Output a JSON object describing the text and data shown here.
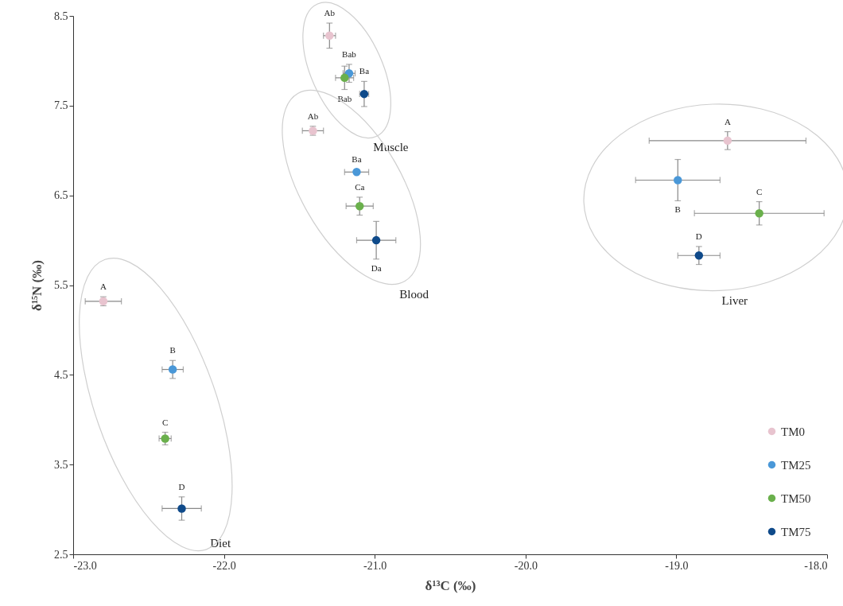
{
  "chart_data": {
    "type": "scatter",
    "xlabel": "δ¹³C (‰)",
    "ylabel": "δ¹⁵N (‰)",
    "xlim": [
      -23,
      -18
    ],
    "xticks": [
      {
        "value": -23,
        "label": "-23.0"
      },
      {
        "value": -22,
        "label": "-22.0"
      },
      {
        "value": -21,
        "label": "-21.0"
      },
      {
        "value": -20,
        "label": "-20.0"
      },
      {
        "value": -19,
        "label": "-19.0"
      },
      {
        "value": -18,
        "label": "-18.0"
      }
    ],
    "ylim": [
      2.5,
      8.5
    ],
    "yticks": [
      2.5,
      3.5,
      4.5,
      5.5,
      6.5,
      7.5,
      8.5
    ],
    "grid": false,
    "legend": "bottom right",
    "marker": "circle",
    "series": [
      {
        "name": "TM0",
        "color": "#e8c4cf",
        "x": [
          -22.8,
          -21.41,
          -21.3,
          -18.66
        ],
        "values": [
          5.32,
          7.22,
          8.28,
          7.11
        ],
        "xerrors": [
          0.12,
          0.07,
          0.04,
          0.52
        ],
        "errors": [
          0.05,
          0.05,
          0.14,
          0.1
        ]
      },
      {
        "name": "TM25",
        "color": "#4a98d8",
        "x": [
          -22.34,
          -21.12,
          -21.17,
          -18.99
        ],
        "values": [
          4.56,
          6.76,
          7.86,
          6.67
        ],
        "xerrors": [
          0.07,
          0.08,
          0.04,
          0.28
        ],
        "errors": [
          0.1,
          null,
          0.1,
          0.23
        ]
      },
      {
        "name": "TM50",
        "color": "#6ab04c",
        "x": [
          -22.39,
          -21.1,
          -21.2,
          -18.45
        ],
        "values": [
          3.79,
          6.38,
          7.81,
          6.3
        ],
        "xerrors": [
          0.04,
          0.09,
          0.06,
          0.43
        ],
        "errors": [
          0.07,
          0.1,
          0.13,
          0.13
        ]
      },
      {
        "name": "TM75",
        "color": "#0f4a8a",
        "x": [
          -22.28,
          -20.99,
          -21.07,
          -18.85
        ],
        "values": [
          3.01,
          6.0,
          7.63,
          5.83
        ],
        "xerrors": [
          0.13,
          0.13,
          0.03,
          0.14
        ],
        "errors": [
          0.13,
          0.21,
          0.14,
          0.1
        ]
      }
    ],
    "annotations": [
      {
        "text": "A",
        "x": -22.8,
        "y": 5.32
      },
      {
        "text": "Ab",
        "x": -21.41,
        "y": 7.22
      },
      {
        "text": "Ab",
        "x": -21.3,
        "y": 8.28
      },
      {
        "text": "A",
        "x": -18.66,
        "y": 7.11
      },
      {
        "text": "B",
        "x": -22.34,
        "y": 4.56
      },
      {
        "text": "Ba",
        "x": -21.12,
        "y": 6.76
      },
      {
        "text": "Bab",
        "x": -21.17,
        "y": 7.86
      },
      {
        "text": "B",
        "x": -18.99,
        "y": 6.67
      },
      {
        "text": "C",
        "x": -22.39,
        "y": 3.79
      },
      {
        "text": "Ca",
        "x": -21.1,
        "y": 6.38
      },
      {
        "text": "Bab",
        "x": -21.2,
        "y": 7.81
      },
      {
        "text": "C",
        "x": -18.45,
        "y": 6.3
      },
      {
        "text": "D",
        "x": -22.28,
        "y": 3.01
      },
      {
        "text": "Da",
        "x": -20.99,
        "y": 6.0
      },
      {
        "text": "Ba",
        "x": -21.07,
        "y": 7.63
      },
      {
        "text": "D",
        "x": -18.85,
        "y": 5.83
      },
      "Diet",
      "Blood",
      "Muscle",
      "Liver"
    ]
  }
}
